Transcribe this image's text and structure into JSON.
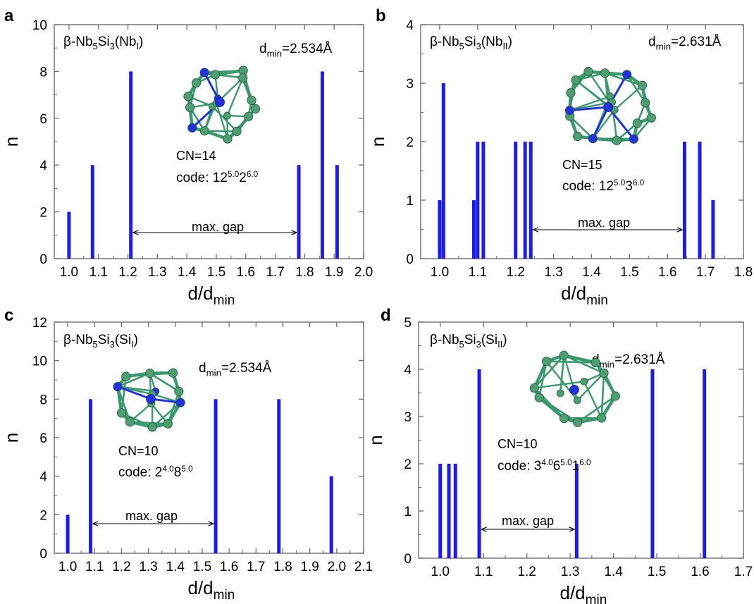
{
  "chart_data": [
    {
      "type": "bar",
      "panel_label": "a",
      "title": "β-Nb5Si3(NbI)",
      "dmin_text": "dmin=2.534Å",
      "cn_text": "CN=14",
      "code_text": "code: 12^5.0 2^6.0",
      "gap_label": "max. gap",
      "xlabel": "d/dmin",
      "ylabel": "n",
      "xlim": [
        0.95,
        2.0
      ],
      "ylim": [
        0,
        10
      ],
      "xticks": [
        "1.0",
        "1.1",
        "1.2",
        "1.3",
        "1.4",
        "1.5",
        "1.6",
        "1.7",
        "1.8",
        "1.9",
        "2.0"
      ],
      "yticks": [
        "0",
        "2",
        "4",
        "6",
        "8",
        "10"
      ],
      "x": [
        1.0,
        1.08,
        1.21,
        1.78,
        1.86,
        1.91
      ],
      "values": [
        2,
        4,
        8,
        4,
        8,
        4
      ],
      "gap": [
        1.21,
        1.78
      ]
    },
    {
      "type": "bar",
      "panel_label": "b",
      "title": "β-Nb5Si3(NbII)",
      "dmin_text": "dmin=2.631Å",
      "cn_text": "CN=15",
      "code_text": "code: 12^5.0 3^6.0",
      "gap_label": "max. gap",
      "xlabel": "d/dmin",
      "ylabel": "n",
      "xlim": [
        0.95,
        1.8
      ],
      "ylim": [
        0,
        4
      ],
      "xticks": [
        "1.0",
        "1.1",
        "1.2",
        "1.3",
        "1.4",
        "1.5",
        "1.6",
        "1.7",
        "1.8"
      ],
      "yticks": [
        "0",
        "1",
        "2",
        "3",
        "4"
      ],
      "x": [
        1.0,
        1.01,
        1.09,
        1.1,
        1.115,
        1.2,
        1.225,
        1.24,
        1.645,
        1.685,
        1.72
      ],
      "values": [
        1,
        3,
        1,
        2,
        2,
        2,
        2,
        2,
        2,
        2,
        1
      ],
      "gap": [
        1.24,
        1.645
      ]
    },
    {
      "type": "bar",
      "panel_label": "c",
      "title": "β-Nb5Si3(SiI)",
      "dmin_text": "dmin=2.534Å",
      "cn_text": "CN=10",
      "code_text": "code: 2^4.0 8^5.0",
      "gap_label": "max. gap",
      "xlabel": "d/dmin",
      "ylabel": "n",
      "xlim": [
        0.95,
        2.1
      ],
      "ylim": [
        0,
        12
      ],
      "xticks": [
        "1.0",
        "1.1",
        "1.2",
        "1.3",
        "1.4",
        "1.5",
        "1.6",
        "1.7",
        "1.8",
        "1.9",
        "2.0",
        "2.1"
      ],
      "yticks": [
        "0",
        "2",
        "4",
        "6",
        "8",
        "10",
        "12"
      ],
      "x": [
        1.0,
        1.085,
        1.55,
        1.785,
        1.98
      ],
      "values": [
        2,
        8,
        8,
        8,
        4
      ],
      "gap": [
        1.085,
        1.55
      ]
    },
    {
      "type": "bar",
      "panel_label": "d",
      "title": "β-Nb5Si3(SiII)",
      "dmin_text": "dmin=2.631Å",
      "cn_text": "CN=10",
      "code_text": "code: 3^4.0 6^5.0 1^6.0",
      "gap_label": "max. gap",
      "xlabel": "d/dmin",
      "ylabel": "n",
      "xlim": [
        0.95,
        1.7
      ],
      "ylim": [
        0,
        5
      ],
      "xticks": [
        "1.0",
        "1.1",
        "1.2",
        "1.3",
        "1.4",
        "1.5",
        "1.6",
        "1.7"
      ],
      "yticks": [
        "0",
        "1",
        "2",
        "3",
        "4",
        "5"
      ],
      "x": [
        1.0,
        1.02,
        1.035,
        1.09,
        1.315,
        1.49,
        1.61
      ],
      "values": [
        2,
        2,
        2,
        4,
        2,
        4,
        4
      ],
      "gap": [
        1.09,
        1.315
      ]
    }
  ],
  "colors": {
    "bar": "#1c1cf0",
    "frame": "#6e6e6e",
    "cluster_bond": "#3a9a6e",
    "cluster_atom": "#4f9e72",
    "cluster_center": "#2233dd"
  },
  "icons": {
    "cluster": "coordination-polyhedron-icon"
  }
}
